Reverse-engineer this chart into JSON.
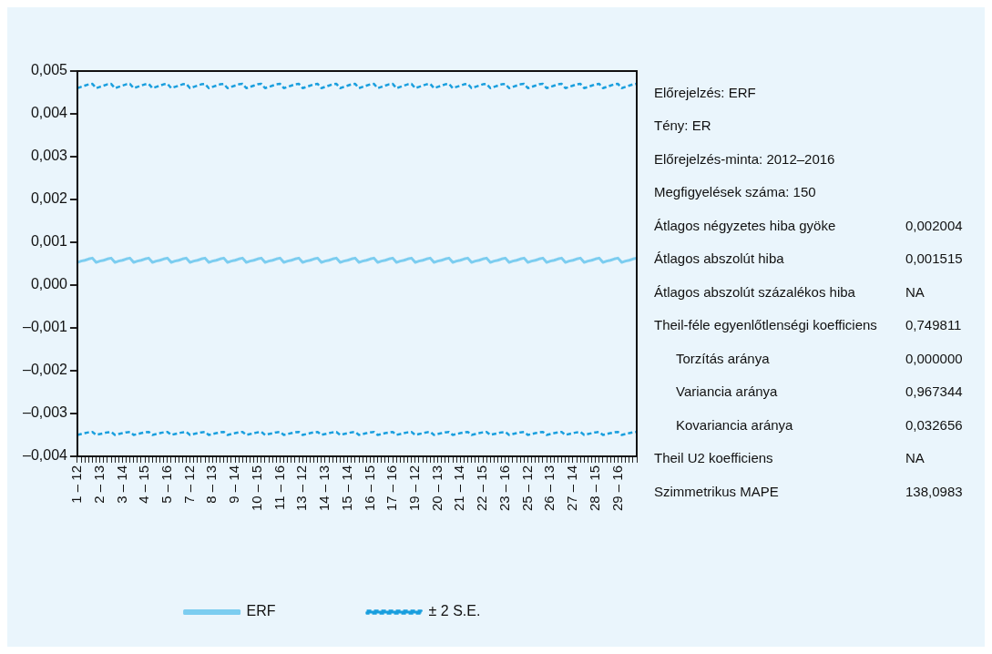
{
  "chart_data": [
    {
      "type": "line",
      "categories": [
        "1 – 12",
        null,
        null,
        null,
        null,
        null,
        "2 – 13",
        null,
        null,
        null,
        null,
        null,
        "3 – 14",
        null,
        null,
        null,
        null,
        null,
        "4 – 15",
        null,
        null,
        null,
        null,
        null,
        "5 – 16",
        null,
        null,
        null,
        null,
        null,
        "7 – 12",
        null,
        null,
        null,
        null,
        null,
        "8 – 13",
        null,
        null,
        null,
        null,
        null,
        "9 – 14",
        null,
        null,
        null,
        null,
        null,
        "10 – 15",
        null,
        null,
        null,
        null,
        null,
        "11 – 16",
        null,
        null,
        null,
        null,
        null,
        "13 – 12",
        null,
        null,
        null,
        null,
        null,
        "14 – 13",
        null,
        null,
        null,
        null,
        null,
        "15 – 14",
        null,
        null,
        null,
        null,
        null,
        "16 – 15",
        null,
        null,
        null,
        null,
        null,
        "17 – 16",
        null,
        null,
        null,
        null,
        null,
        "19 – 12",
        null,
        null,
        null,
        null,
        null,
        "20 – 13",
        null,
        null,
        null,
        null,
        null,
        "21 – 14",
        null,
        null,
        null,
        null,
        null,
        "22 – 15",
        null,
        null,
        null,
        null,
        null,
        "23 – 16",
        null,
        null,
        null,
        null,
        null,
        "25 – 12",
        null,
        null,
        null,
        null,
        null,
        "26 – 13",
        null,
        null,
        null,
        null,
        null,
        "27 – 14",
        null,
        null,
        null,
        null,
        null,
        "28 – 15",
        null,
        null,
        null,
        null,
        null,
        "29 – 16",
        null,
        null,
        null,
        null,
        null
      ],
      "series": [
        {
          "name": "ERF",
          "color": "#7ccdf0",
          "line_style": "solid",
          "values": [
            0.00053,
            0.00056,
            0.00058,
            0.00061,
            0.00063,
            0.00053,
            0.00056,
            0.00058,
            0.00061,
            0.00063,
            0.00053,
            0.00056,
            0.00058,
            0.00061,
            0.00063,
            0.00053,
            0.00056,
            0.00058,
            0.00061,
            0.00063,
            0.00053,
            0.00056,
            0.00058,
            0.00061,
            0.00063,
            0.00053,
            0.00056,
            0.00058,
            0.00061,
            0.00063,
            0.00053,
            0.00056,
            0.00058,
            0.00061,
            0.00063,
            0.00053,
            0.00056,
            0.00058,
            0.00061,
            0.00063,
            0.00053,
            0.00056,
            0.00058,
            0.00061,
            0.00063,
            0.00053,
            0.00056,
            0.00058,
            0.00061,
            0.00063,
            0.00053,
            0.00056,
            0.00058,
            0.00061,
            0.00063,
            0.00053,
            0.00056,
            0.00058,
            0.00061,
            0.00063,
            0.00053,
            0.00056,
            0.00058,
            0.00061,
            0.00063,
            0.00053,
            0.00056,
            0.00058,
            0.00061,
            0.00063,
            0.00053,
            0.00056,
            0.00058,
            0.00061,
            0.00063,
            0.00053,
            0.00056,
            0.00058,
            0.00061,
            0.00063,
            0.00053,
            0.00056,
            0.00058,
            0.00061,
            0.00063,
            0.00053,
            0.00056,
            0.00058,
            0.00061,
            0.00063,
            0.00053,
            0.00056,
            0.00058,
            0.00061,
            0.00063,
            0.00053,
            0.00056,
            0.00058,
            0.00061,
            0.00063,
            0.00053,
            0.00056,
            0.00058,
            0.00061,
            0.00063,
            0.00053,
            0.00056,
            0.00058,
            0.00061,
            0.00063,
            0.00053,
            0.00056,
            0.00058,
            0.00061,
            0.00063,
            0.00053,
            0.00056,
            0.00058,
            0.00061,
            0.00063,
            0.00053,
            0.00056,
            0.00058,
            0.00061,
            0.00063,
            0.00053,
            0.00056,
            0.00058,
            0.00061,
            0.00063,
            0.00053,
            0.00056,
            0.00058,
            0.00061,
            0.00063,
            0.00053,
            0.00056,
            0.00058,
            0.00061,
            0.00063,
            0.00053,
            0.00056,
            0.00058,
            0.00061,
            0.00063,
            0.00053,
            0.00056,
            0.00058,
            0.00061,
            0.00063
          ]
        },
        {
          "name": "± 2 S.E.",
          "color": "#1a9fde",
          "line_style": "dashed",
          "values": [
            0.0046,
            0.00463,
            0.00466,
            0.00469,
            0.0047,
            0.0046,
            0.00463,
            0.00466,
            0.00469,
            0.0047,
            0.0046,
            0.00463,
            0.00466,
            0.00469,
            0.0047,
            0.0046,
            0.00463,
            0.00466,
            0.00469,
            0.0047,
            0.0046,
            0.00463,
            0.00466,
            0.00469,
            0.0047,
            0.0046,
            0.00463,
            0.00466,
            0.00469,
            0.0047,
            0.0046,
            0.00463,
            0.00466,
            0.00469,
            0.0047,
            0.0046,
            0.00463,
            0.00466,
            0.00469,
            0.0047,
            0.0046,
            0.00463,
            0.00466,
            0.00469,
            0.0047,
            0.0046,
            0.00463,
            0.00466,
            0.00469,
            0.0047,
            0.0046,
            0.00463,
            0.00466,
            0.00469,
            0.0047,
            0.0046,
            0.00463,
            0.00466,
            0.00469,
            0.0047,
            0.0046,
            0.00463,
            0.00466,
            0.00469,
            0.0047,
            0.0046,
            0.00463,
            0.00466,
            0.00469,
            0.0047,
            0.0046,
            0.00463,
            0.00466,
            0.00469,
            0.0047,
            0.0046,
            0.00463,
            0.00466,
            0.00469,
            0.0047,
            0.0046,
            0.00463,
            0.00466,
            0.00469,
            0.0047,
            0.0046,
            0.00463,
            0.00466,
            0.00469,
            0.0047,
            0.0046,
            0.00463,
            0.00466,
            0.00469,
            0.0047,
            0.0046,
            0.00463,
            0.00466,
            0.00469,
            0.0047,
            0.0046,
            0.00463,
            0.00466,
            0.00469,
            0.0047,
            0.0046,
            0.00463,
            0.00466,
            0.00469,
            0.0047,
            0.0046,
            0.00463,
            0.00466,
            0.00469,
            0.0047,
            0.0046,
            0.00463,
            0.00466,
            0.00469,
            0.0047,
            0.0046,
            0.00463,
            0.00466,
            0.00469,
            0.0047,
            0.0046,
            0.00463,
            0.00466,
            0.00469,
            0.0047,
            0.0046,
            0.00463,
            0.00466,
            0.00469,
            0.0047,
            0.0046,
            0.00463,
            0.00466,
            0.00469,
            0.0047,
            0.0046,
            0.00463,
            0.00466,
            0.00469,
            0.0047,
            0.0046,
            0.00463,
            0.00466,
            0.00469,
            0.0047
          ]
        },
        {
          "color": "#1a9fde",
          "line_style": "dashed",
          "values": [
            -0.0035,
            -0.00348,
            -0.00346,
            -0.00344,
            -0.00343,
            -0.0035,
            -0.00348,
            -0.00346,
            -0.00344,
            -0.00343,
            -0.0035,
            -0.00348,
            -0.00346,
            -0.00344,
            -0.00343,
            -0.0035,
            -0.00348,
            -0.00346,
            -0.00344,
            -0.00343,
            -0.0035,
            -0.00348,
            -0.00346,
            -0.00344,
            -0.00343,
            -0.0035,
            -0.00348,
            -0.00346,
            -0.00344,
            -0.00343,
            -0.0035,
            -0.00348,
            -0.00346,
            -0.00344,
            -0.00343,
            -0.0035,
            -0.00348,
            -0.00346,
            -0.00344,
            -0.00343,
            -0.0035,
            -0.00348,
            -0.00346,
            -0.00344,
            -0.00343,
            -0.0035,
            -0.00348,
            -0.00346,
            -0.00344,
            -0.00343,
            -0.0035,
            -0.00348,
            -0.00346,
            -0.00344,
            -0.00343,
            -0.0035,
            -0.00348,
            -0.00346,
            -0.00344,
            -0.00343,
            -0.0035,
            -0.00348,
            -0.00346,
            -0.00344,
            -0.00343,
            -0.0035,
            -0.00348,
            -0.00346,
            -0.00344,
            -0.00343,
            -0.0035,
            -0.00348,
            -0.00346,
            -0.00344,
            -0.00343,
            -0.0035,
            -0.00348,
            -0.00346,
            -0.00344,
            -0.00343,
            -0.0035,
            -0.00348,
            -0.00346,
            -0.00344,
            -0.00343,
            -0.0035,
            -0.00348,
            -0.00346,
            -0.00344,
            -0.00343,
            -0.0035,
            -0.00348,
            -0.00346,
            -0.00344,
            -0.00343,
            -0.0035,
            -0.00348,
            -0.00346,
            -0.00344,
            -0.00343,
            -0.0035,
            -0.00348,
            -0.00346,
            -0.00344,
            -0.00343,
            -0.0035,
            -0.00348,
            -0.00346,
            -0.00344,
            -0.00343,
            -0.0035,
            -0.00348,
            -0.00346,
            -0.00344,
            -0.00343,
            -0.0035,
            -0.00348,
            -0.00346,
            -0.00344,
            -0.00343,
            -0.0035,
            -0.00348,
            -0.00346,
            -0.00344,
            -0.00343,
            -0.0035,
            -0.00348,
            -0.00346,
            -0.00344,
            -0.00343,
            -0.0035,
            -0.00348,
            -0.00346,
            -0.00344,
            -0.00343,
            -0.0035,
            -0.00348,
            -0.00346,
            -0.00344,
            -0.00343,
            -0.0035,
            -0.00348,
            -0.00346,
            -0.00344,
            -0.00343,
            -0.0035,
            -0.00348,
            -0.00346,
            -0.00344,
            -0.00343
          ]
        }
      ],
      "ylim": [
        -0.004,
        0.005
      ],
      "yticks": [
        {
          "value": -0.004,
          "label": "–0,004"
        },
        {
          "value": -0.003,
          "label": "–0,003"
        },
        {
          "value": -0.002,
          "label": "–0,002"
        },
        {
          "value": -0.001,
          "label": "–0,001"
        },
        {
          "value": 0,
          "label": "0,000"
        },
        {
          "value": 0.001,
          "label": "0,001"
        },
        {
          "value": 0.002,
          "label": "0,002"
        },
        {
          "value": 0.003,
          "label": "0,003"
        },
        {
          "value": 0.004,
          "label": "0,004"
        },
        {
          "value": 0.005,
          "label": "0,005"
        }
      ],
      "legend": "bottom",
      "marker": "none"
    },
    {
      "type": "other",
      "annotations": [
        "Előrejelzés: ERF",
        "Tény: ER",
        "Előrejelzés-minta: 2012–2016",
        "Megfigyelések száma: 150",
        "Átlagos négyzetes hiba gyöke",
        "0,002004",
        "Átlagos abszolút hiba",
        "0,001515",
        "Átlagos abszolút százalékos hiba",
        "NA",
        "Theil-féle egyenlőtlenségi koefficiens",
        "0,749811",
        "Torzítás aránya",
        "0,000000",
        "Variancia aránya",
        "0,967344",
        "Kovariancia aránya",
        "0,032656",
        "Theil U2 koefficiens",
        "NA",
        "Szimmetrikus MAPE",
        "138,0983"
      ]
    }
  ]
}
